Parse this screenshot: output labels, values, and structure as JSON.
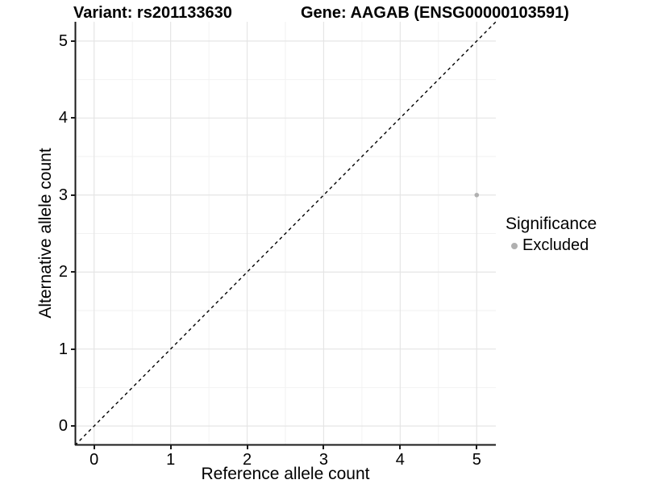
{
  "chart_data": {
    "type": "scatter",
    "title_left": "Variant: rs201133630",
    "title_right": "Gene: AAGAB (ENSG00000103591)",
    "xlabel": "Reference allele count",
    "ylabel": "Alternative allele count",
    "x_tick_labels": [
      "0",
      "1",
      "2",
      "3",
      "4",
      "5"
    ],
    "x_tick_values": [
      0,
      1,
      2,
      3,
      4,
      5
    ],
    "y_tick_labels": [
      "0",
      "1",
      "2",
      "3",
      "4",
      "5"
    ],
    "y_tick_values": [
      0,
      1,
      2,
      3,
      4,
      5
    ],
    "x_minor_values": [
      0.5,
      1.5,
      2.5,
      3.5,
      4.5
    ],
    "y_minor_values": [
      0.5,
      1.5,
      2.5,
      3.5,
      4.5
    ],
    "xlim": [
      -0.25,
      5.25
    ],
    "ylim": [
      -0.25,
      5.25
    ],
    "grid": "major+minor",
    "identity_line": {
      "style": "dashed",
      "x1": -0.25,
      "y1": -0.25,
      "x2": 5.25,
      "y2": 5.25,
      "color": "#000000"
    },
    "points": [
      {
        "x": 5,
        "y": 3,
        "significance": "Excluded",
        "color": "#b0b0b0"
      }
    ],
    "legend": {
      "title": "Significance",
      "position": "right",
      "entries": [
        {
          "label": "Excluded",
          "color": "#b0b0b0"
        }
      ]
    },
    "colors": {
      "background": "#ffffff",
      "grid_major": "#e5e5e5",
      "grid_minor": "#f2f2f2",
      "axis_line": "#1a1a1a",
      "text": "#000000",
      "point": "#b0b0b0"
    }
  }
}
